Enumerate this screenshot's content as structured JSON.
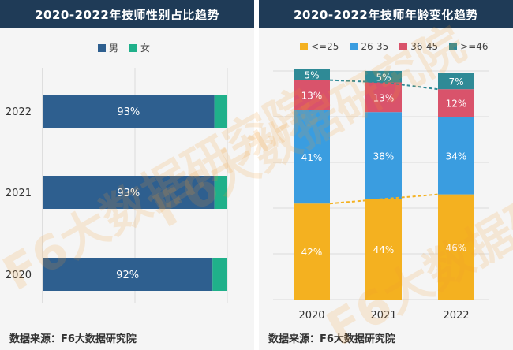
{
  "left": {
    "title": "2020-2022年技师性别占比趋势",
    "source": "数据来源：F6大数据研究院"
  },
  "right": {
    "title": "2020-2022年技师年龄变化趋势",
    "source": "数据来源：F6大数据研究院"
  },
  "watermark": {
    "text": "F6大数据研究院"
  },
  "chart_data": [
    {
      "type": "bar",
      "orientation": "horizontal",
      "stacked": true,
      "title": "2020-2022年技师性别占比趋势",
      "categories": [
        "2022",
        "2021",
        "2020"
      ],
      "series": [
        {
          "name": "男",
          "values": [
            93,
            93,
            92
          ],
          "labels": [
            "93%",
            "93%",
            "92%"
          ],
          "color": "#2e5f8f"
        },
        {
          "name": "女",
          "values": [
            7,
            7,
            8
          ],
          "color": "#1fb08a"
        }
      ],
      "xlim": [
        0,
        100
      ],
      "legend": "top-center",
      "grid": true
    },
    {
      "type": "bar",
      "stacked": true,
      "title": "2020-2022年技师年龄变化趋势",
      "categories": [
        "2020",
        "2021",
        "2022"
      ],
      "series": [
        {
          "name": "<=25",
          "values": [
            42,
            44,
            46
          ],
          "labels": [
            "42%",
            "44%",
            "46%"
          ],
          "color": "#f4b120"
        },
        {
          "name": "26-35",
          "values": [
            41,
            38,
            34
          ],
          "labels": [
            "41%",
            "38%",
            "34%"
          ],
          "color": "#3a9de0"
        },
        {
          "name": "36-45",
          "values": [
            13,
            13,
            12
          ],
          "labels": [
            "13%",
            "13%",
            "12%"
          ],
          "color": "#d9536b"
        },
        {
          "name": ">=46",
          "values": [
            5,
            5,
            7
          ],
          "labels": [
            "5%",
            "5%",
            "7%"
          ],
          "color": "#2f8a96"
        }
      ],
      "ylim": [
        0,
        100
      ],
      "legend": "top-center",
      "grid": true,
      "trend_lines": true
    }
  ]
}
